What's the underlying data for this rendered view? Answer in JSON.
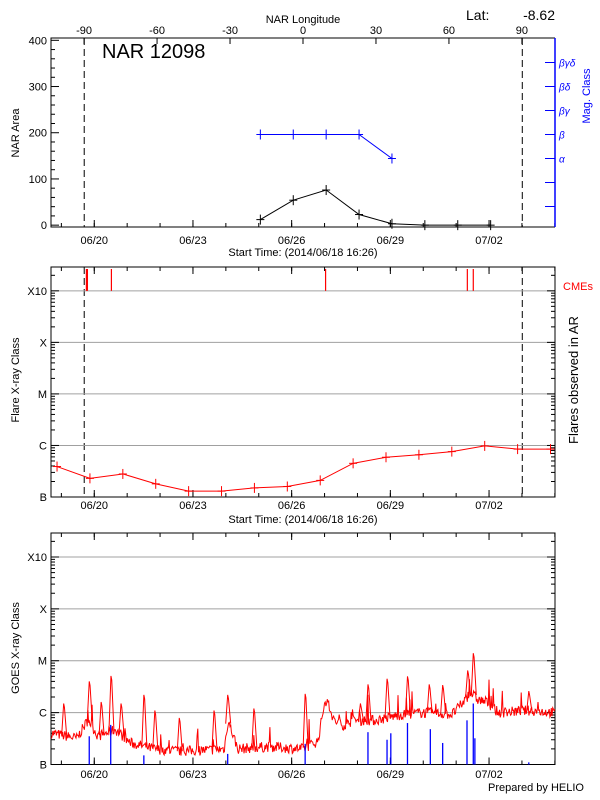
{
  "header": {
    "lat_label": "Lat:",
    "lat_value": "-8.62"
  },
  "footer": {
    "credit": "Prepared by HELIO"
  },
  "colors": {
    "axis": "#000000",
    "grid": "#a0a0a0",
    "flare": "#ff0000",
    "mag": "#0000ff",
    "goes_long": "#ff0000",
    "goes_short": "#0000ff"
  },
  "chart_data": [
    {
      "type": "line",
      "title": "NAR 12098",
      "xlabel": "Start Time: (2014/06/18 16:26)",
      "ylabel": "NAR Area",
      "y2label": "Mag. Class",
      "top_axis_label": "NAR Longitude",
      "xlim": [
        "2014-06-18T16:26",
        "2014-07-04T00:07"
      ],
      "ylim": [
        -4,
        405
      ],
      "grid": false,
      "x_ticks": [
        {
          "date": "2014-06-20T00:00",
          "label": "06/20"
        },
        {
          "date": "2014-06-23T00:00",
          "label": "06/23"
        },
        {
          "date": "2014-06-26T00:00",
          "label": "06/26"
        },
        {
          "date": "2014-06-29T00:00",
          "label": "06/29"
        },
        {
          "date": "2014-07-02T00:00",
          "label": "07/02"
        }
      ],
      "y_ticks": [
        "0",
        "100",
        "200",
        "300",
        "400"
      ],
      "longitude_lim": [
        -103.6,
        103.6
      ],
      "longitude_ticks": [
        "-90",
        "-60",
        "-30",
        "0",
        "30",
        "60",
        "90"
      ],
      "limb_dates": [
        "2014-06-19T16:40",
        "2014-07-03T00:15"
      ],
      "mag_classes": [
        "α",
        "β",
        "βγ",
        "βδ",
        "βγδ"
      ],
      "area": [
        {
          "date": "2014-06-25T01:10",
          "value": 12
        },
        {
          "date": "2014-06-26T01:10",
          "value": 54
        },
        {
          "date": "2014-06-27T01:10",
          "value": 76
        },
        {
          "date": "2014-06-28T01:10",
          "value": 23
        },
        {
          "date": "2014-06-29T01:10",
          "value": 3
        },
        {
          "date": "2014-06-30T01:10",
          "value": 0
        },
        {
          "date": "2014-07-01T01:10",
          "value": 0
        },
        {
          "date": "2014-07-02T01:10",
          "value": 0
        }
      ],
      "mag_class": [
        {
          "date": "2014-06-25T01:10",
          "value": "β"
        },
        {
          "date": "2014-06-26T01:10",
          "value": "β"
        },
        {
          "date": "2014-06-27T01:10",
          "value": "β"
        },
        {
          "date": "2014-06-28T01:10",
          "value": "β"
        },
        {
          "date": "2014-06-29T01:10",
          "value": "α"
        }
      ]
    },
    {
      "type": "line",
      "xlabel": "Start Time: (2014/06/18 16:26)",
      "ylabel": "Flare X-ray Class",
      "y2label": "Flares observed in AR",
      "cme_label": "CMEs",
      "y_scale": "log",
      "ylim": [
        "B1.0",
        "X29"
      ],
      "grid": true,
      "y_ticks": [
        "B",
        "C",
        "M",
        "X",
        "X10"
      ],
      "limb_dates": [
        "2014-06-19T16:40",
        "2014-07-03T00:15"
      ],
      "flares": [
        {
          "date": "2014-06-18T20:50",
          "class": "B3.9"
        },
        {
          "date": "2014-06-19T20:50",
          "class": "B2.3"
        },
        {
          "date": "2014-06-20T20:50",
          "class": "B2.8"
        },
        {
          "date": "2014-06-21T20:50",
          "class": "B1.8"
        },
        {
          "date": "2014-06-22T20:50",
          "class": "B1.3"
        },
        {
          "date": "2014-06-23T20:50",
          "class": "B1.3"
        },
        {
          "date": "2014-06-24T20:50",
          "class": "B1.5"
        },
        {
          "date": "2014-06-25T20:50",
          "class": "B1.6"
        },
        {
          "date": "2014-06-26T20:50",
          "class": "B2.1"
        },
        {
          "date": "2014-06-27T20:50",
          "class": "B4.5"
        },
        {
          "date": "2014-06-28T20:50",
          "class": "B5.9"
        },
        {
          "date": "2014-06-29T20:50",
          "class": "B6.6"
        },
        {
          "date": "2014-06-30T20:50",
          "class": "B7.6"
        },
        {
          "date": "2014-07-01T20:50",
          "class": "B9.8"
        },
        {
          "date": "2014-07-02T20:50",
          "class": "B8.5"
        },
        {
          "date": "2014-07-03T20:50",
          "class": "B8.5"
        }
      ],
      "cmes": [
        "2014-06-19T18:15",
        "2014-06-19T19:00",
        "2014-06-20T12:30",
        "2014-06-27T00:45",
        "2014-07-01T08:10",
        "2014-07-01T12:30"
      ]
    },
    {
      "type": "line",
      "ylabel": "GOES X-ray Class",
      "y_scale": "log",
      "ylim": [
        "B1.0",
        "X29"
      ],
      "grid": true,
      "y_ticks": [
        "B",
        "C",
        "M",
        "X",
        "X10"
      ],
      "long_channel": [
        {
          "date": "2014-06-18T17:15",
          "class": "B4.0"
        },
        {
          "date": "2014-06-19T11:20",
          "class": "B3.2"
        },
        {
          "date": "2014-06-19T19:40",
          "class": "B7.4"
        },
        {
          "date": "2014-06-20T02:40",
          "class": "B3.5"
        },
        {
          "date": "2014-06-20T15:20",
          "class": "B4.7"
        },
        {
          "date": "2014-06-21T02:30",
          "class": "B2.6"
        },
        {
          "date": "2014-06-21T19:10",
          "class": "B2.0"
        },
        {
          "date": "2014-06-22T14:40",
          "class": "B1.8"
        },
        {
          "date": "2014-06-23T10:20",
          "class": "B1.9"
        },
        {
          "date": "2014-06-23T22:50",
          "class": "B2.0"
        },
        {
          "date": "2014-06-24T01:40",
          "class": "B7.1"
        },
        {
          "date": "2014-06-24T08:40",
          "class": "B2.0"
        },
        {
          "date": "2014-06-25T07:00",
          "class": "B2.2"
        },
        {
          "date": "2014-06-26T08:10",
          "class": "B2.0"
        },
        {
          "date": "2014-06-26T19:10",
          "class": "B2.8"
        },
        {
          "date": "2014-06-26T23:30",
          "class": "C1.3"
        },
        {
          "date": "2014-06-27T01:30",
          "class": "C1.8"
        },
        {
          "date": "2014-06-27T06:30",
          "class": "B7.1"
        },
        {
          "date": "2014-06-27T15:00",
          "class": "B5.6"
        },
        {
          "date": "2014-06-27T20:30",
          "class": "B7.1"
        },
        {
          "date": "2014-06-28T13:10",
          "class": "B7.1"
        },
        {
          "date": "2014-06-29T06:00",
          "class": "B8.9"
        },
        {
          "date": "2014-06-29T22:50",
          "class": "C1.0"
        },
        {
          "date": "2014-06-30T21:10",
          "class": "B9.3"
        },
        {
          "date": "2014-07-01T05:30",
          "class": "C1.6"
        },
        {
          "date": "2014-07-01T10:30",
          "class": "C2.5"
        },
        {
          "date": "2014-07-01T15:20",
          "class": "C1.8"
        },
        {
          "date": "2014-07-01T22:20",
          "class": "C1.6"
        },
        {
          "date": "2014-07-02T06:40",
          "class": "C1.0"
        },
        {
          "date": "2014-07-03T05:00",
          "class": "C1.1"
        },
        {
          "date": "2014-07-03T23:59",
          "class": "C1.0"
        }
      ],
      "long_channel_peaks": [
        {
          "date": "2014-06-19T01:40",
          "class": "C1.5"
        },
        {
          "date": "2014-06-19T20:20",
          "class": "C4.0"
        },
        {
          "date": "2014-06-20T05:00",
          "class": "C1.6"
        },
        {
          "date": "2014-06-20T12:10",
          "class": "C5.1"
        },
        {
          "date": "2014-06-20T19:30",
          "class": "C1.5"
        },
        {
          "date": "2014-06-21T12:10",
          "class": "C2.2"
        },
        {
          "date": "2014-06-21T20:10",
          "class": "C1.1"
        },
        {
          "date": "2014-06-22T14:00",
          "class": "B7.9"
        },
        {
          "date": "2014-06-23T15:20",
          "class": "C1.1"
        },
        {
          "date": "2014-06-24T01:20",
          "class": "C2.2"
        },
        {
          "date": "2014-06-24T20:25",
          "class": "C1.2"
        },
        {
          "date": "2014-06-26T09:50",
          "class": "C2.3"
        },
        {
          "date": "2014-06-28T02:10",
          "class": "C1.5"
        },
        {
          "date": "2014-06-28T07:40",
          "class": "C3.5"
        },
        {
          "date": "2014-06-28T21:35",
          "class": "C4.5"
        },
        {
          "date": "2014-06-29T12:30",
          "class": "C5.0"
        },
        {
          "date": "2014-06-30T04:20",
          "class": "C3.5"
        },
        {
          "date": "2014-06-30T14:10",
          "class": "C3.4"
        },
        {
          "date": "2014-07-01T08:25",
          "class": "C6.5"
        },
        {
          "date": "2014-07-01T12:30",
          "class": "M1.4"
        },
        {
          "date": "2014-07-03T05:00",
          "class": "C2.6"
        }
      ],
      "short_channel_peaks": [
        {
          "date": "2014-06-19T20:20",
          "class": "B3.5"
        },
        {
          "date": "2014-06-20T12:00",
          "class": "B5.8"
        },
        {
          "date": "2014-06-21T12:10",
          "class": "B1.5"
        },
        {
          "date": "2014-06-24T01:20",
          "class": "B1.6"
        },
        {
          "date": "2014-06-26T09:50",
          "class": "B2.5"
        },
        {
          "date": "2014-06-28T07:40",
          "class": "B4.2"
        },
        {
          "date": "2014-06-28T21:35",
          "class": "B3.0"
        },
        {
          "date": "2014-06-29T00:20",
          "class": "B4.0"
        },
        {
          "date": "2014-06-29T12:30",
          "class": "B6.3"
        },
        {
          "date": "2014-06-30T05:10",
          "class": "B4.8"
        },
        {
          "date": "2014-06-30T14:10",
          "class": "B2.6"
        },
        {
          "date": "2014-07-01T07:55",
          "class": "B7.1"
        },
        {
          "date": "2014-07-01T12:30",
          "class": "C1.5"
        },
        {
          "date": "2014-07-01T13:40",
          "class": "B3.2"
        },
        {
          "date": "2014-07-03T05:00",
          "class": "B1.1"
        }
      ]
    }
  ]
}
